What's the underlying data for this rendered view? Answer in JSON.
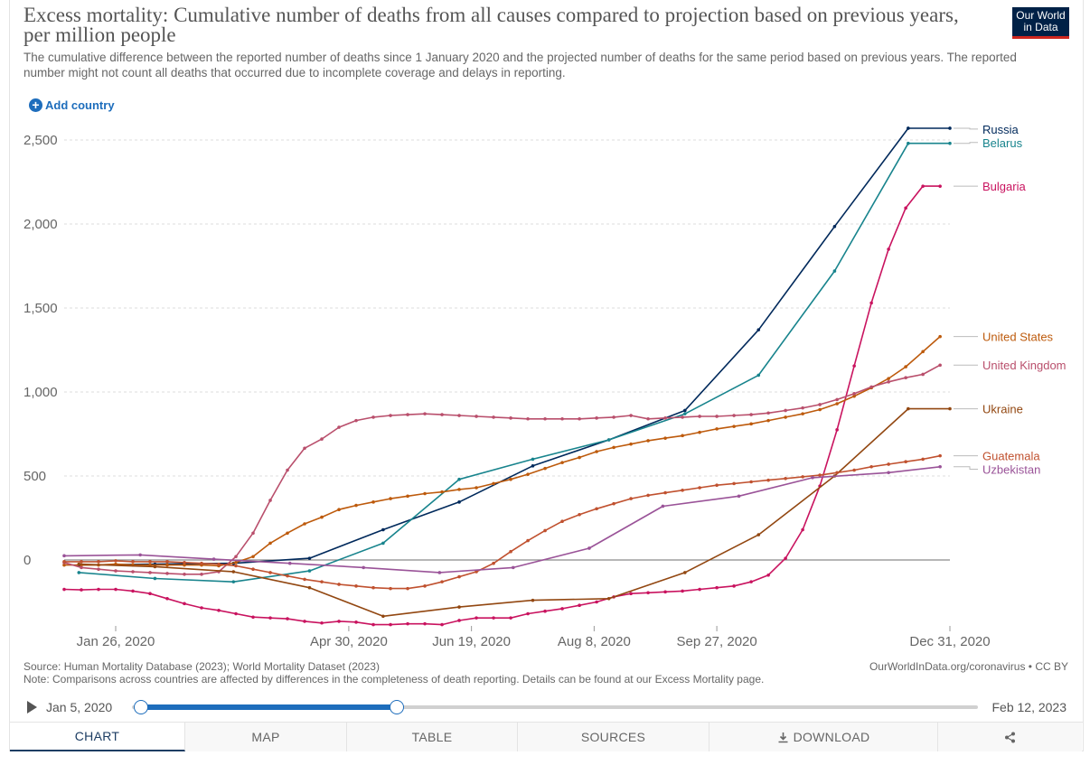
{
  "header": {
    "title": "Excess mortality: Cumulative number of deaths from all causes compared to projection based on previous years, per million people",
    "subtitle": "The cumulative difference between the reported number of deaths since 1 January 2020 and the projected number of deaths for the same period based on previous years. The reported number might not count all deaths that occurred due to incomplete coverage and delays in reporting.",
    "logo_line1": "Our World",
    "logo_line2": "in Data",
    "add_country": "Add country"
  },
  "footer": {
    "source": "Source: Human Mortality Database (2023); World Mortality Dataset (2023)",
    "note": "Note: Comparisons across countries are affected by differences in the completeness of death reporting. Details can be found at our Excess Mortality page.",
    "credit": "OurWorldInData.org/coronavirus • CC BY"
  },
  "timeline": {
    "start_label": "Jan 5, 2020",
    "end_label": "Feb 12, 2023",
    "selected_start": "2020-01-05",
    "selected_end": "2020-12-31"
  },
  "tabs": {
    "chart": "CHART",
    "map": "MAP",
    "table": "TABLE",
    "sources": "SOURCES",
    "download": "DOWNLOAD"
  },
  "chart_data": {
    "type": "line",
    "xlim": [
      5,
      366
    ],
    "ylim": [
      -430,
      2560
    ],
    "x_unit": "day of 2020",
    "x_ticks": [
      {
        "label": "Jan 26, 2020",
        "x": 26
      },
      {
        "label": "Apr 30, 2020",
        "x": 121
      },
      {
        "label": "Jun 19, 2020",
        "x": 171
      },
      {
        "label": "Aug 8, 2020",
        "x": 221
      },
      {
        "label": "Sep 27, 2020",
        "x": 271
      },
      {
        "label": "Dec 31, 2020",
        "x": 366
      }
    ],
    "y_ticks": [
      {
        "label": "0",
        "value": 0
      },
      {
        "label": "500",
        "value": 500
      },
      {
        "label": "1,000",
        "value": 1000
      },
      {
        "label": "1,500",
        "value": 1500
      },
      {
        "label": "2,000",
        "value": 2000
      },
      {
        "label": "2,500",
        "value": 2500
      }
    ],
    "colors": {
      "Russia": "#00295b",
      "Belarus": "#18848d",
      "Bulgaria": "#c9135f",
      "United States": "#bd5a0c",
      "United Kingdom": "#b94f6c",
      "Ukraine": "#924711",
      "Guatemala": "#c0512f",
      "Uzbekistan": "#9a5398",
      "zero_line": "#8a8a8a",
      "grid": "#dddddd"
    },
    "series": [
      {
        "name": "Russia",
        "x": [
          11,
          42,
          74,
          105,
          135,
          166,
          196,
          227,
          258,
          288,
          319,
          349,
          366
        ],
        "values": [
          -30,
          -25,
          -20,
          10,
          180,
          345,
          560,
          715,
          890,
          1370,
          1985,
          2570,
          2570
        ]
      },
      {
        "name": "Belarus",
        "x": [
          11,
          42,
          74,
          105,
          135,
          166,
          196,
          227,
          258,
          288,
          319,
          349,
          366
        ],
        "values": [
          -75,
          -110,
          -130,
          -65,
          100,
          480,
          600,
          715,
          870,
          1100,
          1720,
          2480,
          2480
        ]
      },
      {
        "name": "Bulgaria",
        "x": [
          5,
          12,
          19,
          26,
          33,
          40,
          47,
          54,
          61,
          68,
          75,
          82,
          89,
          96,
          103,
          110,
          117,
          124,
          131,
          138,
          145,
          152,
          159,
          166,
          173,
          180,
          187,
          194,
          201,
          208,
          215,
          222,
          229,
          236,
          243,
          250,
          257,
          264,
          271,
          278,
          285,
          292,
          299,
          306,
          313,
          320,
          327,
          334,
          341,
          348,
          355,
          362
        ],
        "values": [
          -175,
          -178,
          -175,
          -175,
          -185,
          -200,
          -230,
          -260,
          -285,
          -300,
          -320,
          -340,
          -345,
          -350,
          -365,
          -375,
          -365,
          -370,
          -385,
          -385,
          -380,
          -380,
          -385,
          -360,
          -345,
          -345,
          -345,
          -320,
          -305,
          -290,
          -270,
          -250,
          -220,
          -200,
          -195,
          -190,
          -185,
          -175,
          -165,
          -155,
          -130,
          -90,
          10,
          180,
          440,
          775,
          1155,
          1530,
          1850,
          2095,
          2225,
          2225
        ]
      },
      {
        "name": "United States",
        "x": [
          5,
          12,
          19,
          26,
          33,
          40,
          47,
          54,
          61,
          68,
          75,
          82,
          89,
          96,
          103,
          110,
          117,
          124,
          131,
          138,
          145,
          152,
          159,
          166,
          173,
          180,
          187,
          194,
          201,
          208,
          215,
          222,
          229,
          236,
          243,
          250,
          257,
          264,
          271,
          278,
          285,
          292,
          299,
          306,
          313,
          320,
          327,
          334,
          341,
          348,
          355,
          362
        ],
        "values": [
          -30,
          -30,
          -30,
          -25,
          -30,
          -30,
          -30,
          -30,
          -30,
          -35,
          -15,
          20,
          100,
          160,
          215,
          255,
          300,
          325,
          345,
          365,
          380,
          395,
          405,
          420,
          430,
          455,
          480,
          510,
          545,
          580,
          610,
          645,
          670,
          690,
          710,
          725,
          740,
          760,
          780,
          795,
          810,
          830,
          850,
          870,
          895,
          930,
          975,
          1025,
          1080,
          1150,
          1240,
          1330
        ]
      },
      {
        "name": "United Kingdom",
        "x": [
          5,
          12,
          19,
          26,
          33,
          40,
          47,
          54,
          61,
          68,
          75,
          82,
          89,
          96,
          103,
          110,
          117,
          124,
          131,
          138,
          145,
          152,
          159,
          166,
          173,
          180,
          187,
          194,
          201,
          208,
          215,
          222,
          229,
          236,
          243,
          250,
          257,
          264,
          271,
          278,
          285,
          292,
          299,
          306,
          313,
          320,
          327,
          334,
          341,
          348,
          355,
          362
        ],
        "values": [
          -15,
          -45,
          -55,
          -65,
          -70,
          -75,
          -80,
          -85,
          -85,
          -70,
          20,
          160,
          355,
          535,
          665,
          720,
          790,
          830,
          850,
          860,
          865,
          870,
          865,
          860,
          855,
          850,
          845,
          840,
          840,
          840,
          840,
          845,
          850,
          860,
          840,
          845,
          850,
          855,
          855,
          860,
          865,
          875,
          890,
          905,
          925,
          955,
          990,
          1030,
          1060,
          1085,
          1105,
          1160
        ]
      },
      {
        "name": "Ukraine",
        "x": [
          11,
          42,
          74,
          105,
          135,
          166,
          196,
          227,
          258,
          288,
          319,
          349,
          366
        ],
        "values": [
          -25,
          -40,
          -70,
          -165,
          -335,
          -280,
          -240,
          -230,
          -75,
          150,
          500,
          900,
          900
        ]
      },
      {
        "name": "Guatemala",
        "x": [
          5,
          12,
          19,
          26,
          33,
          40,
          47,
          54,
          61,
          68,
          75,
          82,
          89,
          96,
          103,
          110,
          117,
          124,
          131,
          138,
          145,
          152,
          159,
          166,
          173,
          180,
          187,
          194,
          201,
          208,
          215,
          222,
          229,
          236,
          243,
          250,
          257,
          264,
          271,
          278,
          285,
          292,
          299,
          306,
          313,
          320,
          327,
          334,
          341,
          348,
          355,
          362
        ],
        "values": [
          -10,
          -10,
          -10,
          -5,
          -10,
          -10,
          -10,
          -15,
          -20,
          -25,
          -35,
          -55,
          -75,
          -95,
          -115,
          -130,
          -145,
          -155,
          -165,
          -170,
          -170,
          -155,
          -130,
          -100,
          -70,
          -20,
          50,
          115,
          175,
          230,
          270,
          305,
          335,
          365,
          385,
          400,
          415,
          430,
          445,
          455,
          465,
          475,
          485,
          495,
          505,
          520,
          535,
          555,
          570,
          585,
          600,
          620
        ]
      },
      {
        "name": "Uzbekistan",
        "x": [
          5,
          36,
          66,
          97,
          127,
          158,
          188,
          219,
          249,
          280,
          310,
          341,
          362
        ],
        "values": [
          25,
          30,
          5,
          -20,
          -45,
          -75,
          -45,
          70,
          320,
          380,
          490,
          520,
          555
        ]
      }
    ],
    "legend": [
      {
        "name": "Russia",
        "label_value": 2565,
        "end_value": 2570
      },
      {
        "name": "Belarus",
        "label_value": 2485,
        "end_value": 2480
      },
      {
        "name": "Bulgaria",
        "label_value": 2225,
        "end_value": 2225
      },
      {
        "name": "United States",
        "label_value": 1330,
        "end_value": 1330
      },
      {
        "name": "United Kingdom",
        "label_value": 1160,
        "end_value": 1160
      },
      {
        "name": "Ukraine",
        "label_value": 900,
        "end_value": 900
      },
      {
        "name": "Guatemala",
        "label_value": 620,
        "end_value": 620
      },
      {
        "name": "Uzbekistan",
        "label_value": 540,
        "end_value": 555
      }
    ],
    "legend_placement": "right",
    "grid": true
  }
}
